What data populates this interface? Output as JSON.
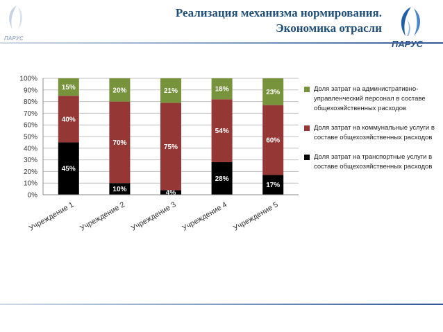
{
  "header": {
    "title_line1": "Реализация механизма нормирования.",
    "title_line2": "Экономика отрасли",
    "logo_text_left": "ПАРУС",
    "logo_text_right": "ПАРУС"
  },
  "colors": {
    "admin": "#77933c",
    "communal": "#953735",
    "transport": "#000000",
    "title": "#1f4e79"
  },
  "chart_data": {
    "type": "bar",
    "stacked": true,
    "categories": [
      "Учреждение 1",
      "Учреждение 2",
      "Учреждение 3",
      "Учреждение 4",
      "Учреждение 5"
    ],
    "series": [
      {
        "name": "Доля затрат на транспортные услуги в составе общехозяйственных расходов",
        "values": [
          45,
          10,
          4,
          28,
          17
        ],
        "labels": [
          "45%",
          "10%",
          "4%",
          "28%",
          "17%"
        ]
      },
      {
        "name": "Доля затрат на коммунальные услуги в составе общехозяйственных расходов",
        "values": [
          40,
          70,
          75,
          54,
          60
        ],
        "labels": [
          "40%",
          "70%",
          "75%",
          "54%",
          "60%"
        ]
      },
      {
        "name": "Доля затрат на административно-управленческий персонал в составе общехозяйственных расходов",
        "values": [
          15,
          20,
          21,
          18,
          23
        ],
        "labels": [
          "15%",
          "20%",
          "21%",
          "18%",
          "23%"
        ]
      }
    ],
    "yticks": [
      "0%",
      "10%",
      "20%",
      "30%",
      "40%",
      "50%",
      "60%",
      "70%",
      "80%",
      "90%",
      "100%"
    ],
    "ylim": [
      0,
      100
    ],
    "grid": true,
    "legend_position": "right"
  }
}
